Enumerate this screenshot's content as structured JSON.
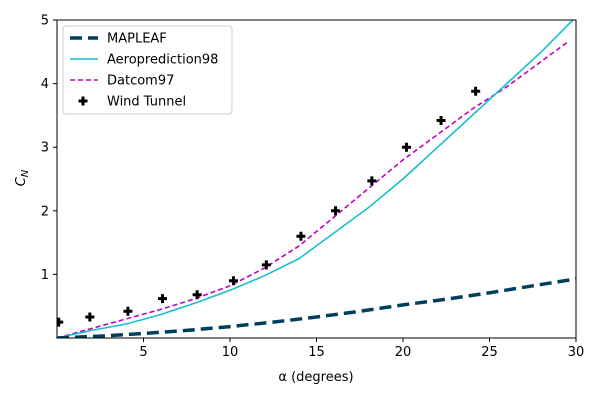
{
  "chart_data": {
    "type": "line",
    "title": "",
    "xlabel": "α (degrees)",
    "ylabel": "C_N",
    "xlim": [
      0,
      30
    ],
    "ylim": [
      0,
      5
    ],
    "xticks": [
      5,
      10,
      15,
      20,
      25,
      30
    ],
    "yticks": [
      1,
      2,
      3,
      4,
      5
    ],
    "grid": false,
    "legend_position": "top-left",
    "series": [
      {
        "name": "MAPLEAF",
        "color": "#003f5c",
        "style": "thick-dashed",
        "x": [
          0,
          2.5,
          5,
          7.5,
          10,
          12.5,
          15,
          17.5,
          20,
          22.5,
          25,
          27.5,
          30
        ],
        "y": [
          0,
          0.03,
          0.07,
          0.12,
          0.18,
          0.25,
          0.33,
          0.42,
          0.52,
          0.61,
          0.71,
          0.82,
          0.93
        ]
      },
      {
        "name": "Aeroprediction98",
        "color": "#17becf",
        "style": "solid",
        "x": [
          0,
          2,
          4,
          6,
          8,
          10,
          12,
          14,
          16,
          18,
          20,
          22,
          24,
          26,
          28,
          30
        ],
        "y": [
          0,
          0.12,
          0.22,
          0.37,
          0.55,
          0.75,
          0.98,
          1.25,
          1.65,
          2.05,
          2.5,
          3.0,
          3.5,
          4.0,
          4.5,
          5.05
        ]
      },
      {
        "name": "Datcom97",
        "color": "#c000c0",
        "style": "dashed",
        "x": [
          0,
          2,
          4,
          6,
          8,
          10,
          12,
          14,
          16,
          18,
          20,
          22,
          24,
          26,
          28,
          29.5
        ],
        "y": [
          0,
          0.15,
          0.3,
          0.45,
          0.62,
          0.82,
          1.1,
          1.45,
          1.9,
          2.35,
          2.8,
          3.2,
          3.6,
          3.95,
          4.35,
          4.65
        ]
      },
      {
        "name": "Wind Tunnel",
        "color": "#000000",
        "style": "markers-plus",
        "x": [
          0.1,
          1.9,
          4.1,
          6.1,
          8.1,
          10.2,
          12.1,
          14.1,
          16.1,
          18.2,
          20.2,
          22.2,
          24.2
        ],
        "y": [
          0.25,
          0.33,
          0.42,
          0.62,
          0.68,
          0.9,
          1.15,
          1.6,
          2.0,
          2.47,
          3.0,
          3.42,
          3.88
        ]
      }
    ]
  }
}
